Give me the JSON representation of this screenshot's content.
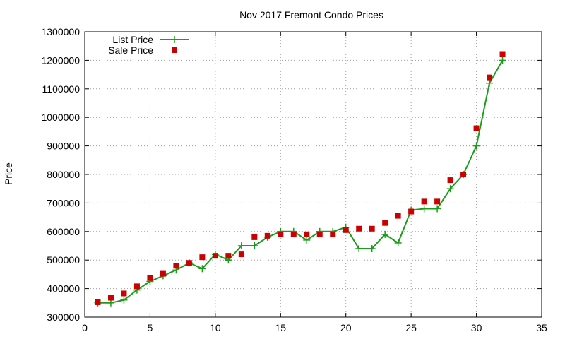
{
  "chart_data": {
    "type": "line",
    "title": "Nov 2017 Fremont Condo Prices",
    "xlabel": "",
    "ylabel": "Price",
    "xlim": [
      0,
      35
    ],
    "ylim": [
      300000,
      1300000
    ],
    "xticks": [
      0,
      5,
      10,
      15,
      20,
      25,
      30,
      35
    ],
    "yticks": [
      300000,
      400000,
      500000,
      600000,
      700000,
      800000,
      900000,
      1000000,
      1100000,
      1200000,
      1300000
    ],
    "grid": true,
    "legend_position": "top-left",
    "series": [
      {
        "name": "List Price",
        "style": "line-with-plus-markers",
        "color": "#1a9e1a",
        "x": [
          1,
          2,
          3,
          4,
          5,
          6,
          7,
          8,
          9,
          10,
          11,
          12,
          13,
          14,
          15,
          16,
          17,
          18,
          19,
          20,
          21,
          22,
          23,
          24,
          25,
          26,
          27,
          28,
          29,
          30,
          31,
          32
        ],
        "y": [
          350000,
          350000,
          360000,
          395000,
          425000,
          445000,
          465000,
          490000,
          470000,
          520000,
          500000,
          550000,
          550000,
          580000,
          600000,
          600000,
          570000,
          600000,
          600000,
          615000,
          540000,
          540000,
          590000,
          560000,
          675000,
          680000,
          680000,
          750000,
          800000,
          900000,
          1120000,
          1200000
        ]
      },
      {
        "name": "Sale Price",
        "style": "square-markers",
        "color": "#cc0000",
        "x": [
          1,
          2,
          3,
          4,
          5,
          6,
          7,
          8,
          9,
          10,
          11,
          12,
          13,
          14,
          15,
          16,
          17,
          18,
          19,
          20,
          21,
          22,
          23,
          24,
          25,
          26,
          27,
          28,
          29,
          30,
          31,
          32
        ],
        "y": [
          352000,
          368000,
          383000,
          408000,
          437000,
          452000,
          480000,
          490000,
          510000,
          515000,
          515000,
          520000,
          580000,
          585000,
          590000,
          590000,
          590000,
          590000,
          590000,
          605000,
          610000,
          610000,
          630000,
          655000,
          670000,
          705000,
          705000,
          780000,
          800000,
          962000,
          1140000,
          1222000
        ]
      }
    ]
  }
}
